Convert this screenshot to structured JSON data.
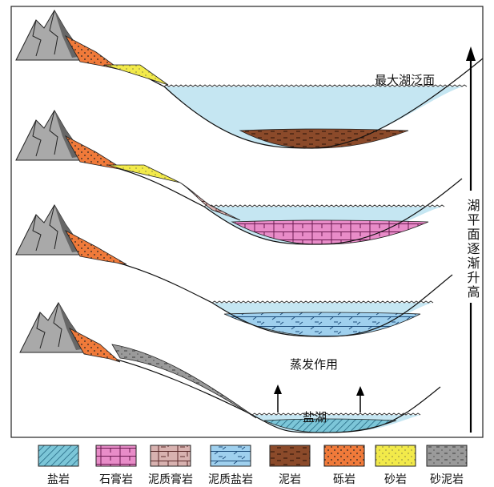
{
  "labels": {
    "max_flooding_surface": "最大湖泛面",
    "evaporation": "蒸发作用",
    "salt_lake": "盐湖",
    "lake_level_rising": "湖平面逐渐升高"
  },
  "legend": [
    {
      "label": "盐岩"
    },
    {
      "label": "石膏岩"
    },
    {
      "label": "泥质膏岩"
    },
    {
      "label": "泥质盐岩"
    },
    {
      "label": "泥岩"
    },
    {
      "label": "砾岩"
    },
    {
      "label": "砂岩"
    },
    {
      "label": "砂泥岩"
    }
  ]
}
